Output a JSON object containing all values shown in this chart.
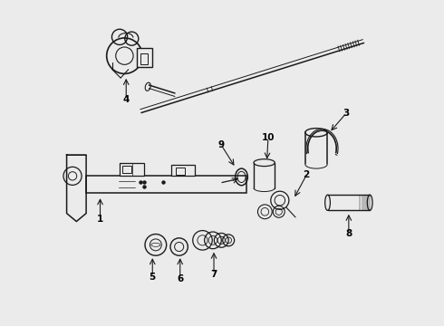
{
  "bg_color": "#ebebeb",
  "line_color": "#1a1a1a",
  "label_color": "#000000",
  "fig_width": 4.9,
  "fig_height": 3.6,
  "dpi": 100
}
